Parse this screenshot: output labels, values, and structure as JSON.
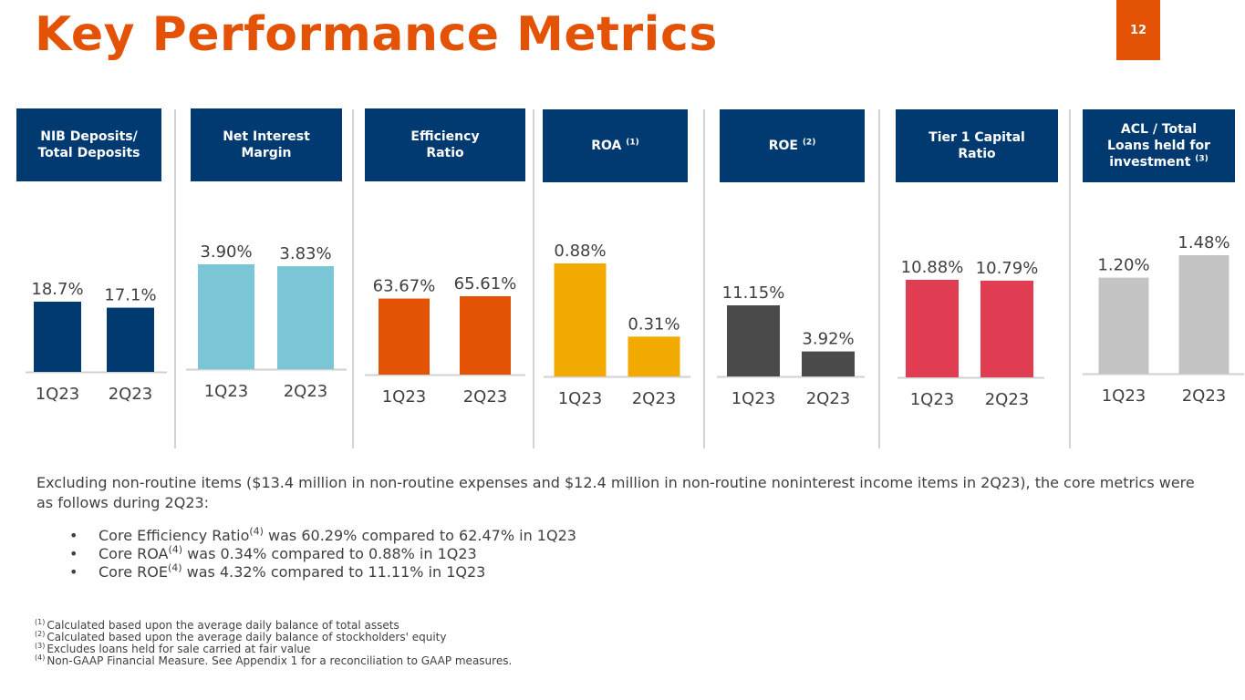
{
  "page": {
    "title": "Key Performance Metrics",
    "number": "12"
  },
  "metrics": [
    {
      "label_lines": [
        "NIB Deposits/",
        "Total Deposits"
      ],
      "sup": ""
    },
    {
      "label_lines": [
        "Net Interest",
        "Margin"
      ],
      "sup": ""
    },
    {
      "label_lines": [
        "Efficiency",
        "Ratio"
      ],
      "sup": ""
    },
    {
      "label_lines": [
        "ROA"
      ],
      "sup": "(1)"
    },
    {
      "label_lines": [
        "ROE"
      ],
      "sup": "(2)"
    },
    {
      "label_lines": [
        "Tier 1 Capital",
        "Ratio"
      ],
      "sup": ""
    },
    {
      "label_lines": [
        "ACL / Total",
        "Loans held for",
        "investment"
      ],
      "sup": "(3)"
    }
  ],
  "chart_data": [
    {
      "type": "bar",
      "title": "NIB Deposits/ Total Deposits",
      "categories": [
        "1Q23",
        "2Q23"
      ],
      "values": [
        18.7,
        17.1
      ],
      "labels": [
        "18.7%",
        "17.1%"
      ],
      "unit": "%",
      "color": "#003A70"
    },
    {
      "type": "bar",
      "title": "Net Interest Margin",
      "categories": [
        "1Q23",
        "2Q23"
      ],
      "values": [
        3.9,
        3.83
      ],
      "labels": [
        "3.90%",
        "3.83%"
      ],
      "unit": "%",
      "color": "#7BC6D6"
    },
    {
      "type": "bar",
      "title": "Efficiency Ratio",
      "categories": [
        "1Q23",
        "2Q23"
      ],
      "values": [
        63.67,
        65.61
      ],
      "labels": [
        "63.67%",
        "65.61%"
      ],
      "unit": "%",
      "color": "#E35205"
    },
    {
      "type": "bar",
      "title": "ROA (1)",
      "categories": [
        "1Q23",
        "2Q23"
      ],
      "values": [
        0.88,
        0.31
      ],
      "labels": [
        "0.88%",
        "0.31%"
      ],
      "unit": "%",
      "color": "#F2A900"
    },
    {
      "type": "bar",
      "title": "ROE (2)",
      "categories": [
        "1Q23",
        "2Q23"
      ],
      "values": [
        11.15,
        3.92
      ],
      "labels": [
        "11.15%",
        "3.92%"
      ],
      "unit": "%",
      "color": "#4A4A4A"
    },
    {
      "type": "bar",
      "title": "Tier 1 Capital Ratio",
      "categories": [
        "1Q23",
        "2Q23"
      ],
      "values": [
        10.88,
        10.79
      ],
      "labels": [
        "10.88%",
        "10.79%"
      ],
      "unit": "%",
      "color": "#E03C52"
    },
    {
      "type": "bar",
      "title": "ACL / Total Loans held for investment (3)",
      "categories": [
        "1Q23",
        "2Q23"
      ],
      "values": [
        1.2,
        1.48
      ],
      "labels": [
        "1.20%",
        "1.48%"
      ],
      "unit": "%",
      "color": "#C4C4C4"
    }
  ],
  "summary": {
    "intro": "Excluding non-routine items ($13.4 million in non-routine expenses and $12.4 million in non-routine noninterest income items in 2Q23), the core metrics were as follows during 2Q23:",
    "bullet_symbol": "•",
    "bullets": [
      {
        "pre": "Core Efficiency Ratio",
        "sup": "(4)",
        "post": " was 60.29% compared to 62.47% in 1Q23"
      },
      {
        "pre": "Core ROA",
        "sup": "(4)",
        "post": " was 0.34% compared to 0.88% in 1Q23"
      },
      {
        "pre": "Core ROE",
        "sup": "(4)",
        "post": " was 4.32% compared to 11.11% in 1Q23"
      }
    ]
  },
  "footnotes": [
    {
      "marker": "(1)",
      "text": "Calculated based upon the average daily balance of total assets"
    },
    {
      "marker": "(2)",
      "text": "Calculated based upon the average daily balance of stockholders' equity"
    },
    {
      "marker": "(3)",
      "text": "Excludes loans held for sale carried at fair value"
    },
    {
      "marker": "(4)",
      "text": "Non-GAAP Financial Measure. See Appendix 1 for a reconciliation to GAAP measures."
    }
  ],
  "colors": {
    "brand_orange": "#E35205",
    "brand_navy": "#003A70"
  }
}
